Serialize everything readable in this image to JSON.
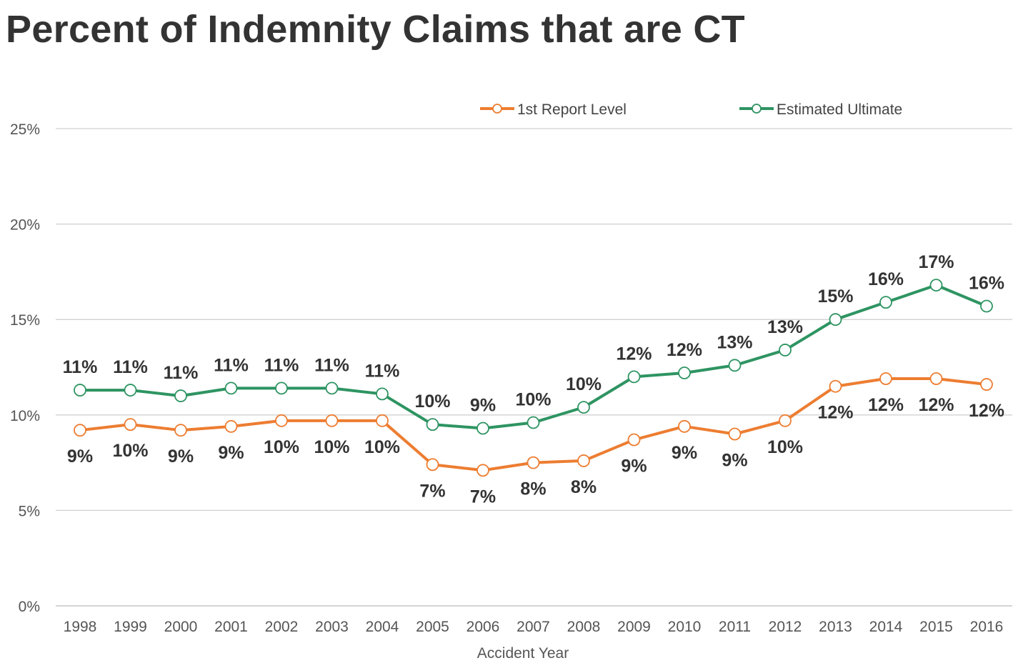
{
  "chart_data": {
    "type": "line",
    "title": "Percent of Indemnity Claims that are CT",
    "xlabel": "Accident Year",
    "ylabel": "",
    "ylim": [
      0,
      25
    ],
    "yticks": [
      "0%",
      "5%",
      "10%",
      "15%",
      "20%",
      "25%"
    ],
    "grid": true,
    "legend_position": "top-right",
    "categories": [
      "1998",
      "1999",
      "2000",
      "2001",
      "2002",
      "2003",
      "2004",
      "2005",
      "2006",
      "2007",
      "2008",
      "2009",
      "2010",
      "2011",
      "2012",
      "2013",
      "2014",
      "2015",
      "2016"
    ],
    "series": [
      {
        "name": "1st Report Level",
        "color": "#ED7D31",
        "values": [
          9.2,
          9.5,
          9.2,
          9.4,
          9.7,
          9.7,
          9.7,
          7.4,
          7.1,
          7.5,
          7.6,
          8.7,
          9.4,
          9.0,
          9.7,
          11.5,
          11.9,
          11.9,
          11.6
        ],
        "labels": [
          "9%",
          "10%",
          "9%",
          "9%",
          "10%",
          "10%",
          "10%",
          "7%",
          "7%",
          "8%",
          "8%",
          "9%",
          "9%",
          "9%",
          "10%",
          "12%",
          "12%",
          "12%",
          "12%"
        ]
      },
      {
        "name": "Estimated Ultimate",
        "color": "#2E9462",
        "values": [
          11.3,
          11.3,
          11.0,
          11.4,
          11.4,
          11.4,
          11.1,
          9.5,
          9.3,
          9.6,
          10.4,
          12.0,
          12.2,
          12.6,
          13.4,
          15.0,
          15.9,
          16.8,
          15.7
        ],
        "labels": [
          "11%",
          "11%",
          "11%",
          "11%",
          "11%",
          "11%",
          "11%",
          "10%",
          "9%",
          "10%",
          "10%",
          "12%",
          "12%",
          "13%",
          "13%",
          "15%",
          "16%",
          "17%",
          "16%"
        ]
      }
    ]
  }
}
